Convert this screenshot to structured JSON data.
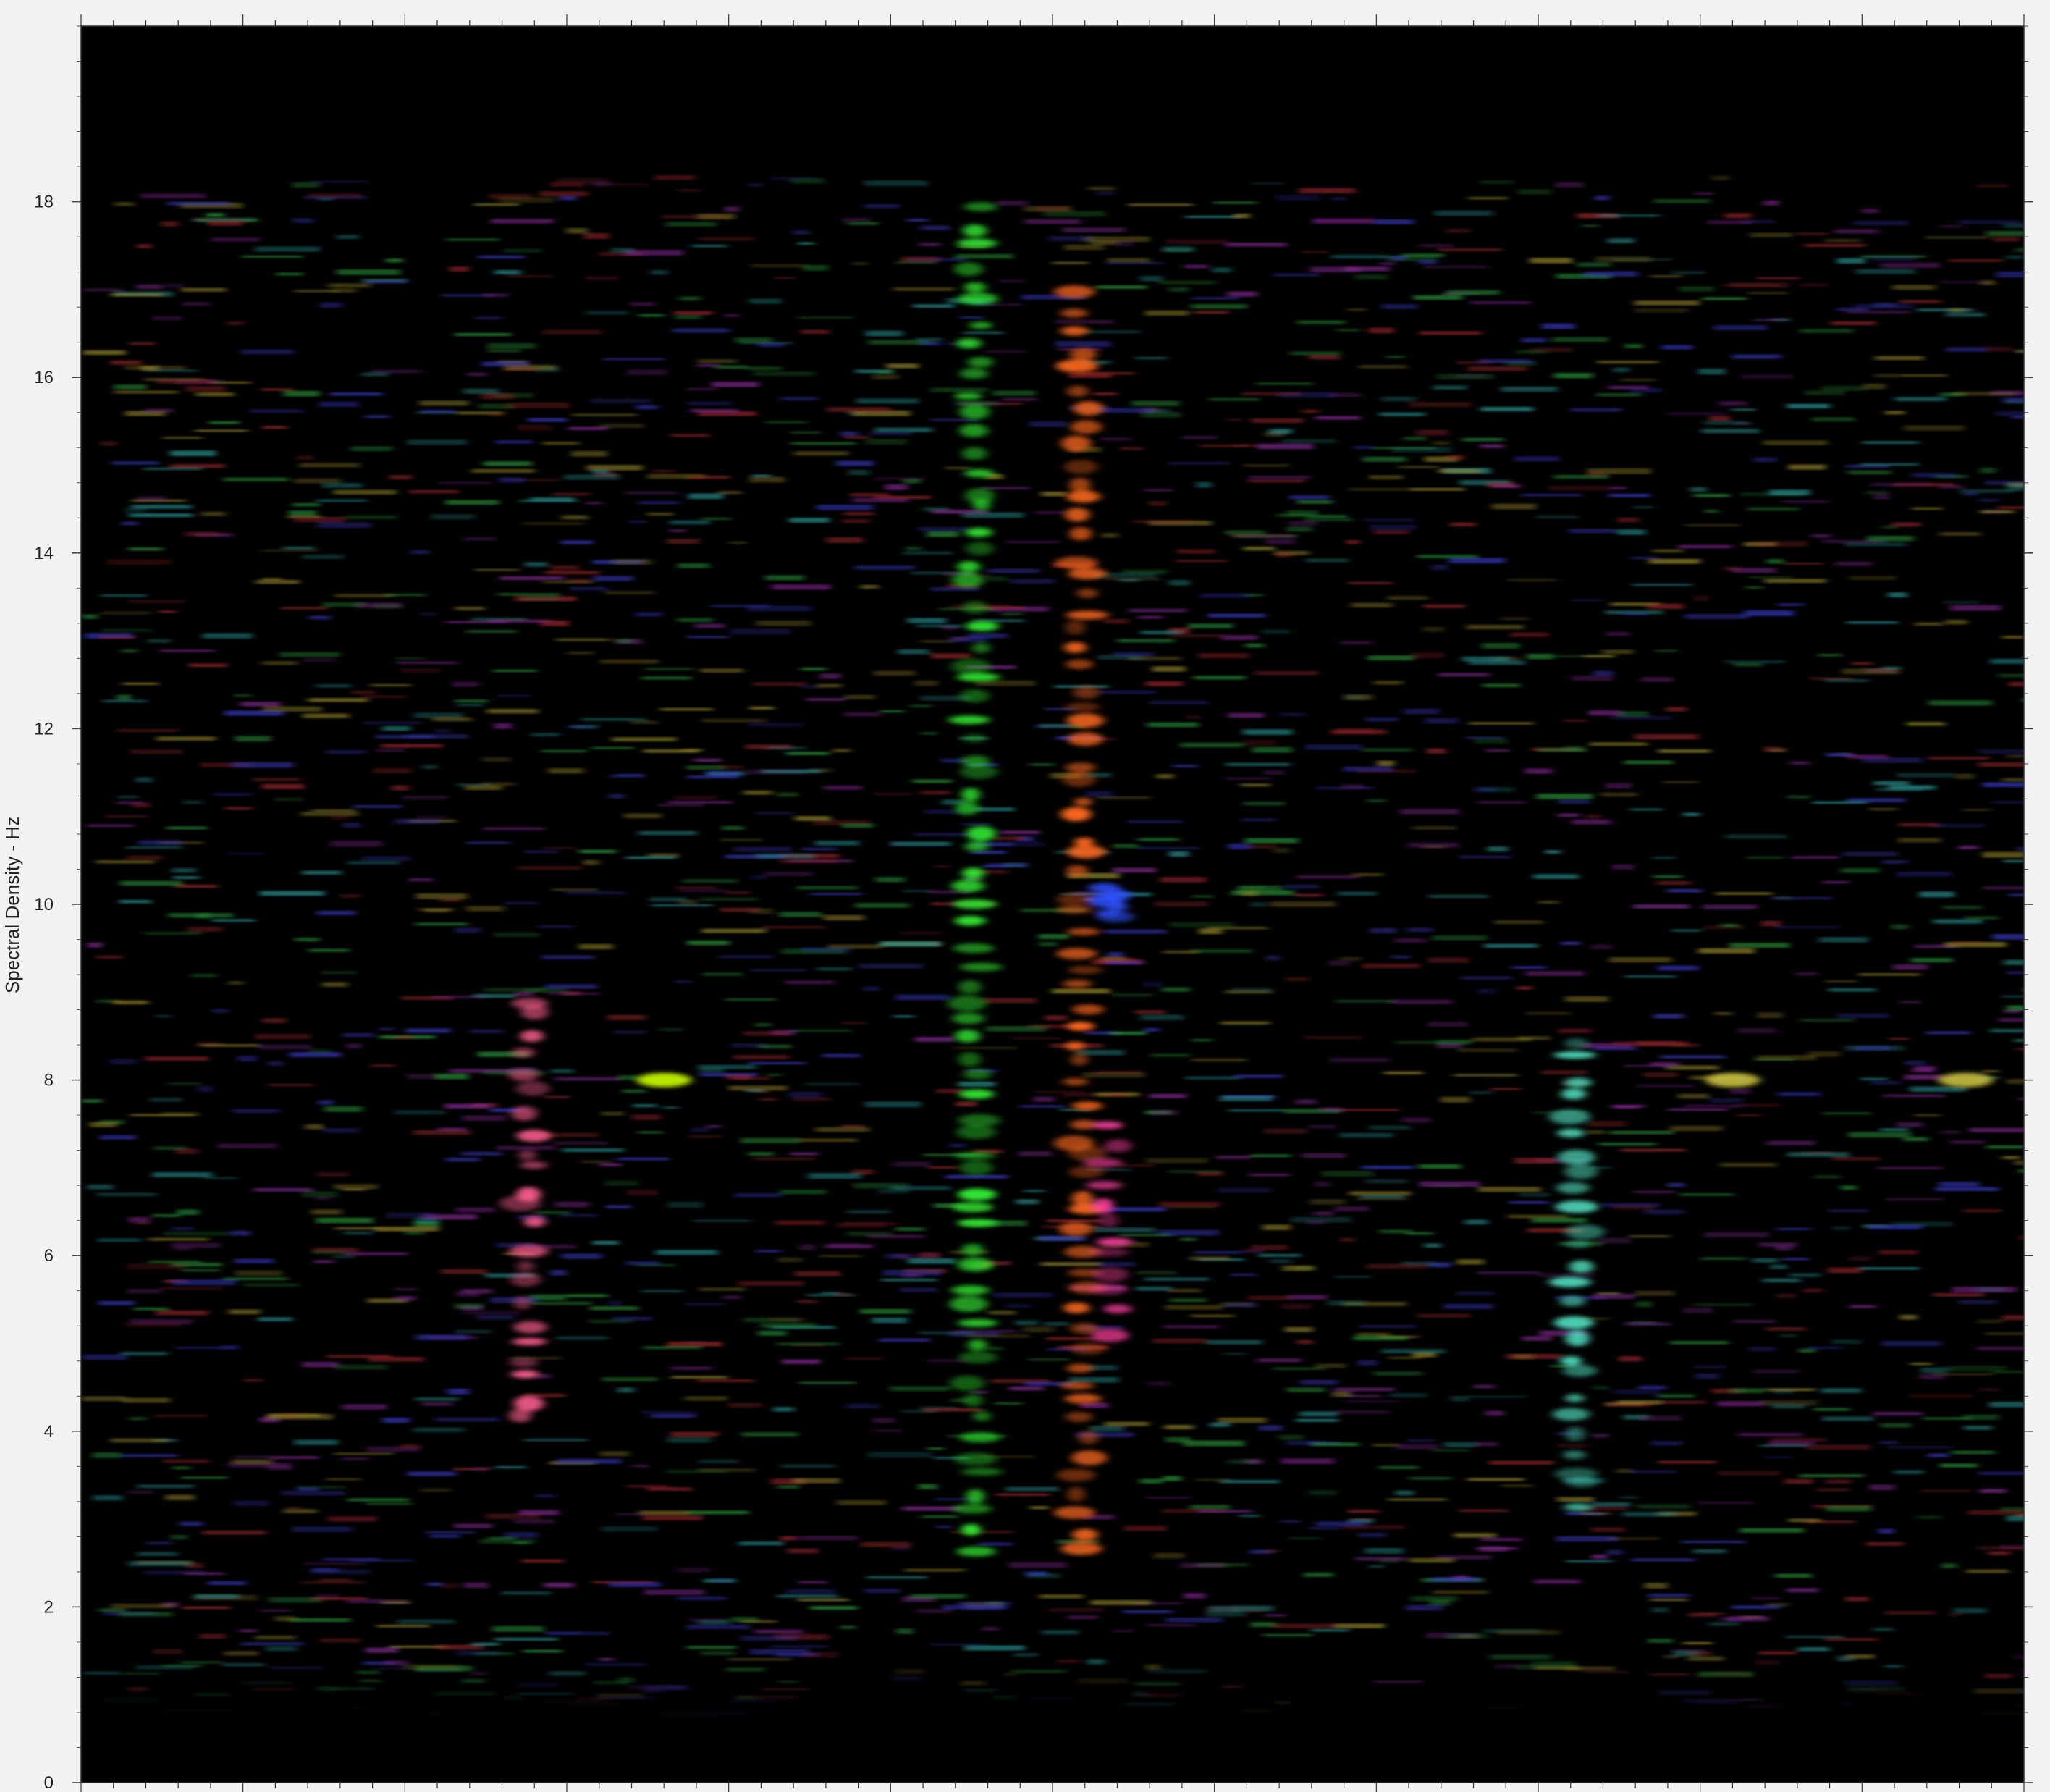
{
  "chart_data": {
    "type": "heatmap",
    "title": "",
    "xlabel": "",
    "ylabel": "Spectral Density - Hz",
    "ylim": [
      0,
      20
    ],
    "y_ticks": [
      {
        "value": 0,
        "label": "0"
      },
      {
        "value": 2,
        "label": "2"
      },
      {
        "value": 4,
        "label": "4"
      },
      {
        "value": 6,
        "label": "6"
      },
      {
        "value": 8,
        "label": "8"
      },
      {
        "value": 10,
        "label": "10"
      },
      {
        "value": 12,
        "label": "12"
      },
      {
        "value": 14,
        "label": "14"
      },
      {
        "value": 16,
        "label": "16"
      },
      {
        "value": 18,
        "label": "18"
      }
    ],
    "x_tick_labels_shown": false,
    "grid": false,
    "legend": "none",
    "background_color": "#000000",
    "noise_band_hz": [
      0.8,
      18.3
    ],
    "noise_colors": [
      "#a0282d",
      "#2a9a3a",
      "#3a3ac8",
      "#8a2a9a",
      "#2a9a9a",
      "#9a8a2a"
    ],
    "features": [
      {
        "x": 0.46,
        "y_from": 2.5,
        "y_to": 18.0,
        "color": "#33ee33"
      },
      {
        "x": 0.515,
        "y_from": 2.5,
        "y_to": 17.0,
        "color": "#ff6a20"
      },
      {
        "x": 0.23,
        "y_from": 4.0,
        "y_to": 9.0,
        "color": "#ff6090"
      },
      {
        "x": 0.77,
        "y_from": 3.0,
        "y_to": 8.5,
        "color": "#50e0c0"
      },
      {
        "x": 0.3,
        "y_from": 8.0,
        "y_to": 8.0,
        "color": "#ccff00"
      },
      {
        "x": 0.53,
        "y_from": 5.0,
        "y_to": 7.5,
        "color": "#ff40a0"
      },
      {
        "x": 0.53,
        "y_from": 9.8,
        "y_to": 10.2,
        "color": "#3050ff"
      },
      {
        "x": 0.85,
        "y_from": 8.0,
        "y_to": 8.0,
        "color": "#c8c040"
      },
      {
        "x": 0.97,
        "y_from": 8.0,
        "y_to": 8.0,
        "color": "#c8c040"
      }
    ]
  }
}
